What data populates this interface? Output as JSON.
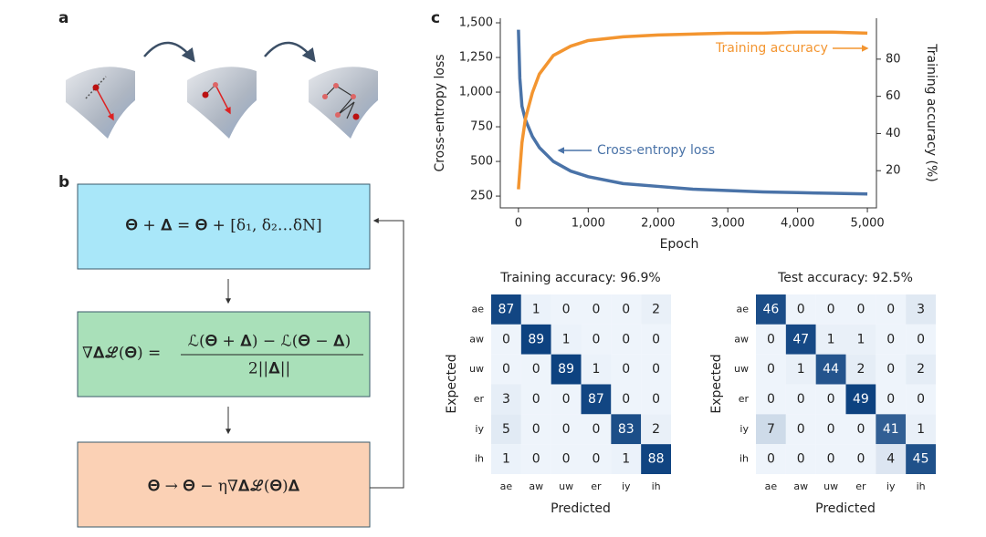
{
  "panel_labels": [
    "a",
    "b",
    "c"
  ],
  "diagram": {
    "box1": "𝚯 + 𝚫 = 𝚯 + [δ₁, δ₂…δN]",
    "box2_lhs": "∇𝚫ℒ(𝚯) =",
    "box2_num": "ℒ(𝚯 + 𝚫) − ℒ(𝚯 − 𝚫)",
    "box2_den": "2||𝚫||",
    "box3": "𝚯 → 𝚯 − η∇𝚫ℒ(𝚯)𝚫"
  },
  "chart_data": [
    {
      "type": "line",
      "xlabel": "Epoch",
      "ylabel": "Cross-entropy loss",
      "y2label": "Training accuracy (%)",
      "x": [
        0,
        20,
        50,
        100,
        200,
        300,
        500,
        750,
        1000,
        1500,
        2000,
        2500,
        3000,
        3500,
        4000,
        4500,
        5000
      ],
      "series": [
        {
          "name": "Cross-entropy loss",
          "color": "#4a73a8",
          "values": [
            1450,
            1100,
            900,
            800,
            680,
            600,
            500,
            430,
            390,
            340,
            320,
            300,
            290,
            280,
            275,
            270,
            265
          ]
        },
        {
          "name": "Training accuracy",
          "color": "#f39530",
          "axis": "y2",
          "values": [
            10,
            20,
            35,
            48,
            62,
            72,
            82,
            87,
            90,
            92,
            93,
            93.5,
            94,
            94,
            94.5,
            94.5,
            94
          ]
        }
      ],
      "xlim": [
        -260,
        5130
      ],
      "ylim": [
        165,
        1533
      ],
      "y2lim": [
        0,
        102
      ],
      "xticks": [
        0,
        {
          "value": 1000,
          "label": "1,000"
        },
        {
          "value": 2000,
          "label": "2,000"
        },
        {
          "value": 3000,
          "label": "3,000"
        },
        {
          "value": 4000,
          "label": "4,000"
        },
        {
          "value": 5000,
          "label": "5,000"
        }
      ],
      "yticks": [
        250,
        500,
        750,
        {
          "value": 1000,
          "label": "1,000"
        },
        {
          "value": 1250,
          "label": "1,250"
        },
        {
          "value": 1500,
          "label": "1,500"
        }
      ],
      "y2ticks": [
        20,
        40,
        60,
        80
      ]
    },
    {
      "type": "heatmap",
      "title": "Training accuracy: 96.9%",
      "xlabel": "Predicted",
      "ylabel": "Expected",
      "categories": [
        "ae",
        "aw",
        "uw",
        "er",
        "iy",
        "ih"
      ],
      "values": [
        [
          87,
          1,
          0,
          0,
          0,
          2
        ],
        [
          0,
          89,
          1,
          0,
          0,
          0
        ],
        [
          0,
          0,
          89,
          1,
          0,
          0
        ],
        [
          3,
          0,
          0,
          87,
          0,
          0
        ],
        [
          5,
          0,
          0,
          0,
          83,
          2
        ],
        [
          1,
          0,
          0,
          0,
          1,
          88
        ]
      ]
    },
    {
      "type": "heatmap",
      "title": "Test accuracy: 92.5%",
      "xlabel": "Predicted",
      "ylabel": "Expected",
      "categories": [
        "ae",
        "aw",
        "uw",
        "er",
        "iy",
        "ih"
      ],
      "values": [
        [
          46,
          0,
          0,
          0,
          0,
          3
        ],
        [
          0,
          47,
          1,
          1,
          0,
          0
        ],
        [
          0,
          1,
          44,
          2,
          0,
          2
        ],
        [
          0,
          0,
          0,
          49,
          0,
          0
        ],
        [
          7,
          0,
          0,
          0,
          41,
          1
        ],
        [
          0,
          0,
          0,
          0,
          4,
          45
        ]
      ]
    }
  ]
}
